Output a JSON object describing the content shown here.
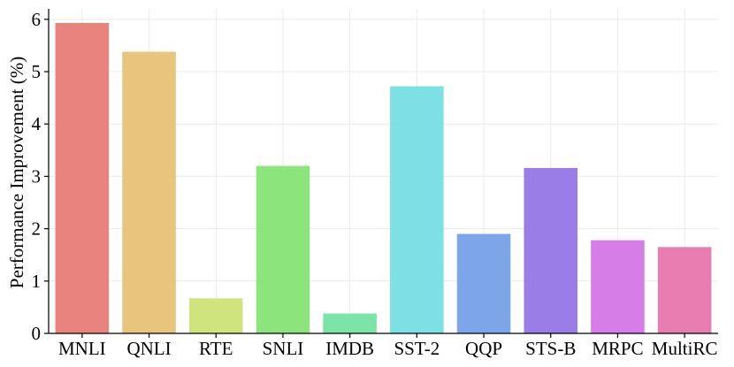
{
  "chart_data": {
    "type": "bar",
    "title": "",
    "xlabel": "",
    "ylabel": "Performance Improvement (%)",
    "ylim": [
      0,
      6.2
    ],
    "yticks": [
      0,
      1,
      2,
      3,
      4,
      5,
      6
    ],
    "grid": true,
    "categories": [
      "MNLI",
      "QNLI",
      "RTE",
      "SNLI",
      "IMDB",
      "SST-2",
      "QQP",
      "STS-B",
      "MRPC",
      "MultiRC"
    ],
    "values": [
      5.93,
      5.38,
      0.67,
      3.2,
      0.38,
      4.72,
      1.9,
      3.16,
      1.78,
      1.65
    ],
    "colors": [
      "#e8847d",
      "#e8c47d",
      "#cfe47d",
      "#8ce47d",
      "#7de4a8",
      "#7de0e4",
      "#7da6e8",
      "#9b7de8",
      "#d77de8",
      "#e87db2"
    ]
  }
}
